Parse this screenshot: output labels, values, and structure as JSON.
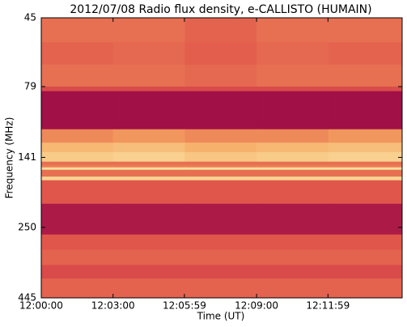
{
  "chart_data": {
    "type": "heatmap",
    "title": "2012/07/08  Radio flux density, e-CALLISTO (HUMAIN)",
    "xlabel": "Time (UT)",
    "ylabel": "Frequency (MHz)",
    "xlim": [
      "12:00:00",
      "12:15:05"
    ],
    "xticks": [
      "12:00:00",
      "12:03:00",
      "12:05:59",
      "12:09:00",
      "12:11:59"
    ],
    "ylim": [
      45,
      445
    ],
    "yticks": [
      45,
      79,
      141,
      250,
      445
    ],
    "log_y": true,
    "y_inverted": true,
    "x_edges": [
      "12:00:00",
      "12:03:00",
      "12:06:00",
      "12:09:00",
      "12:12:00",
      "12:15:05"
    ],
    "y_edges": [
      45,
      55,
      66,
      79,
      82,
      112,
      125,
      135,
      146,
      150,
      153,
      156,
      165,
      170,
      206,
      265,
      300,
      340,
      380,
      445
    ],
    "colormap": [
      "#9b0a46",
      "#e0524a",
      "#f5a862",
      "#fbe7a8"
    ],
    "zlim": [
      0,
      1
    ],
    "z": [
      [
        0.45,
        0.45,
        0.4,
        0.45,
        0.45
      ],
      [
        0.4,
        0.42,
        0.38,
        0.42,
        0.4
      ],
      [
        0.45,
        0.45,
        0.42,
        0.45,
        0.45
      ],
      [
        0.3,
        0.3,
        0.3,
        0.3,
        0.3
      ],
      [
        0.03,
        0.03,
        0.03,
        0.03,
        0.03
      ],
      [
        0.55,
        0.6,
        0.55,
        0.55,
        0.6
      ],
      [
        0.75,
        0.78,
        0.72,
        0.75,
        0.78
      ],
      [
        0.85,
        0.88,
        0.82,
        0.85,
        0.88
      ],
      [
        0.45,
        0.45,
        0.45,
        0.45,
        0.45
      ],
      [
        0.5,
        0.5,
        0.5,
        0.5,
        0.5
      ],
      [
        0.95,
        0.95,
        0.95,
        0.95,
        0.95
      ],
      [
        0.45,
        0.45,
        0.45,
        0.45,
        0.45
      ],
      [
        0.9,
        0.9,
        0.9,
        0.9,
        0.9
      ],
      [
        0.35,
        0.35,
        0.35,
        0.35,
        0.35
      ],
      [
        0.08,
        0.08,
        0.08,
        0.08,
        0.08
      ],
      [
        0.35,
        0.35,
        0.35,
        0.35,
        0.35
      ],
      [
        0.4,
        0.4,
        0.4,
        0.4,
        0.4
      ],
      [
        0.3,
        0.3,
        0.3,
        0.3,
        0.3
      ],
      [
        0.4,
        0.4,
        0.4,
        0.4,
        0.4
      ]
    ]
  }
}
